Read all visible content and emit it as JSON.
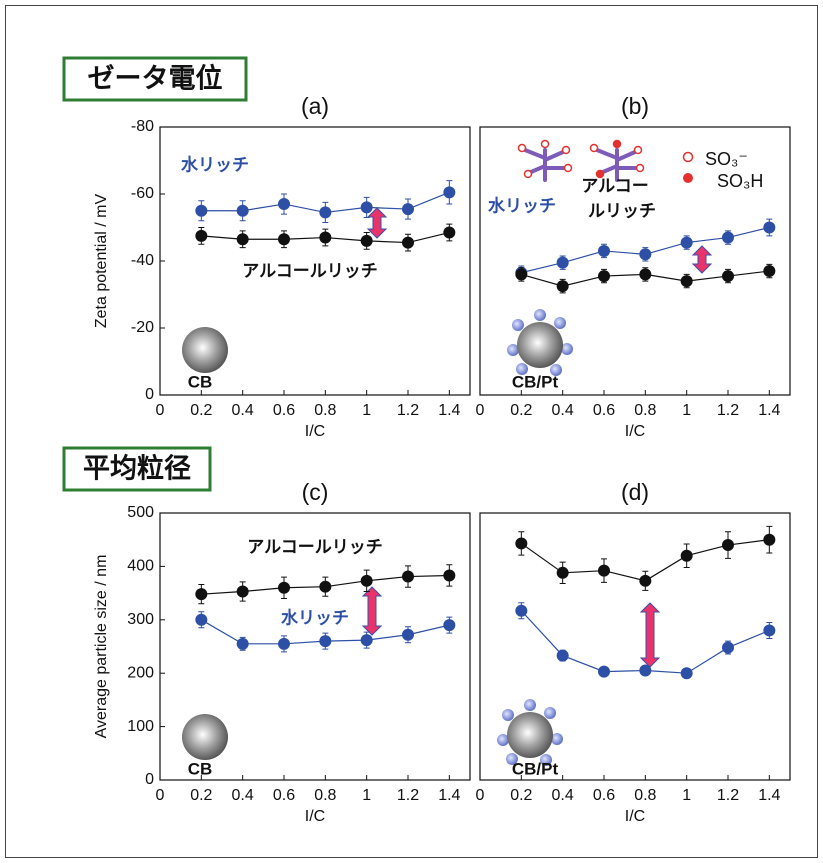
{
  "section_labels": [
    "ゼータ電位",
    "平均粒径"
  ],
  "chart_data": [
    {
      "type": "line",
      "title": "(a)",
      "xlabel": "I/C",
      "ylabel": "Zeta potential / mV",
      "x": [
        0.2,
        0.4,
        0.6,
        0.8,
        1,
        1.2,
        1.4
      ],
      "xlim": [
        0,
        1.5
      ],
      "xticks": [
        0,
        0.2,
        0.4,
        0.6,
        0.8,
        1,
        1.2,
        1.4
      ],
      "ylim": [
        0,
        -80
      ],
      "yticks": [
        -80,
        -60,
        -40,
        -20,
        0
      ],
      "series": [
        {
          "color": "#2d4fa6",
          "values": [
            -55,
            -55,
            -57,
            -54.5,
            -56,
            -55.5,
            -60.5
          ],
          "errors": [
            3,
            3,
            3,
            3,
            3,
            3,
            3.5
          ]
        },
        {
          "color": "#111111",
          "values": [
            -47.5,
            -46.5,
            -46.5,
            -47,
            -46,
            -45.5,
            -48.5
          ],
          "errors": [
            2.5,
            2.5,
            2.5,
            2.5,
            2.5,
            2.5,
            2.5
          ]
        }
      ],
      "annotations": [
        {
          "text": "水リッチ",
          "color": "#2d4fa6"
        },
        {
          "text": "アルコールリッチ",
          "color": "#111111"
        },
        {
          "text": "CB",
          "color": "#111111"
        }
      ]
    },
    {
      "type": "line",
      "title": "(b)",
      "xlabel": "I/C",
      "x": [
        0.2,
        0.4,
        0.6,
        0.8,
        1,
        1.2,
        1.4
      ],
      "xlim": [
        0,
        1.5
      ],
      "xticks": [
        0,
        0.2,
        0.4,
        0.6,
        0.8,
        1,
        1.2,
        1.4
      ],
      "ylim": [
        0,
        -80
      ],
      "series": [
        {
          "color": "#2d4fa6",
          "values": [
            -36.5,
            -39.5,
            -43,
            -42,
            -45.5,
            -47,
            -50
          ],
          "errors": [
            2,
            2,
            2,
            2,
            2,
            2,
            2.5
          ]
        },
        {
          "color": "#111111",
          "values": [
            -36,
            -32.5,
            -35.5,
            -36,
            -34,
            -35.5,
            -37
          ],
          "errors": [
            2,
            2,
            2,
            2,
            2,
            2,
            2
          ]
        }
      ],
      "annotations": [
        {
          "text": "水リッチ",
          "color": "#2d4fa6"
        },
        {
          "text": "アルコー",
          "color": "#111111"
        },
        {
          "text": "ルリッチ",
          "color": "#111111"
        },
        {
          "text": "SO₃⁻",
          "color": "#111111"
        },
        {
          "text": "SO₃H",
          "color": "#111111"
        },
        {
          "text": "CB/Pt",
          "color": "#111111"
        }
      ]
    },
    {
      "type": "line",
      "title": "(c)",
      "xlabel": "I/C",
      "ylabel": "Average particle size / nm",
      "x": [
        0.2,
        0.4,
        0.6,
        0.8,
        1,
        1.2,
        1.4
      ],
      "xlim": [
        0,
        1.5
      ],
      "xticks": [
        0,
        0.2,
        0.4,
        0.6,
        0.8,
        1,
        1.2,
        1.4
      ],
      "ylim": [
        0,
        500
      ],
      "yticks": [
        0,
        100,
        200,
        300,
        400,
        500
      ],
      "series": [
        {
          "color": "#111111",
          "values": [
            348,
            353,
            360,
            362,
            373,
            381,
            383
          ],
          "errors": [
            18,
            18,
            20,
            18,
            20,
            20,
            20
          ]
        },
        {
          "color": "#2d4fa6",
          "values": [
            300,
            255,
            255,
            260,
            262,
            272,
            290
          ],
          "errors": [
            15,
            12,
            15,
            15,
            15,
            15,
            15
          ]
        }
      ],
      "annotations": [
        {
          "text": "アルコールリッチ",
          "color": "#111111"
        },
        {
          "text": "水リッチ",
          "color": "#2d4fa6"
        },
        {
          "text": "CB",
          "color": "#111111"
        }
      ]
    },
    {
      "type": "line",
      "title": "(d)",
      "xlabel": "I/C",
      "x": [
        0.2,
        0.4,
        0.6,
        0.8,
        1,
        1.2,
        1.4
      ],
      "xlim": [
        0,
        1.5
      ],
      "xticks": [
        0,
        0.2,
        0.4,
        0.6,
        0.8,
        1,
        1.2,
        1.4
      ],
      "ylim": [
        0,
        500
      ],
      "series": [
        {
          "color": "#111111",
          "values": [
            443,
            388,
            392,
            373,
            420,
            440,
            450
          ],
          "errors": [
            22,
            20,
            22,
            18,
            22,
            25,
            25
          ]
        },
        {
          "color": "#2d4fa6",
          "values": [
            317,
            233,
            203,
            205,
            200,
            248,
            280
          ],
          "errors": [
            15,
            10,
            8,
            8,
            8,
            12,
            15
          ]
        }
      ],
      "annotations": [
        {
          "text": "CB/Pt",
          "color": "#111111"
        }
      ]
    }
  ]
}
